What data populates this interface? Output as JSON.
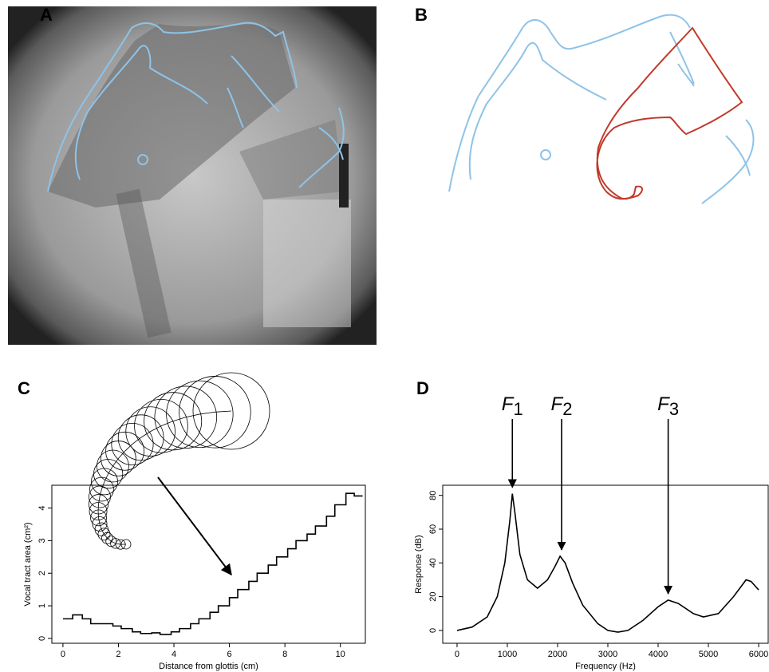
{
  "panel_labels": [
    "A",
    "B",
    "C",
    "D"
  ],
  "chart_data": [
    {
      "type": "step",
      "xlabel": "Distance from glottis (cm)",
      "ylabel": "Vocal tract area (cm²)",
      "x": [
        0,
        0.35,
        0.7,
        1.0,
        1.4,
        1.8,
        2.1,
        2.5,
        2.8,
        3.2,
        3.5,
        3.9,
        4.2,
        4.6,
        4.9,
        5.3,
        5.6,
        6.0,
        6.3,
        6.7,
        7.0,
        7.4,
        7.7,
        8.1,
        8.4,
        8.8,
        9.1,
        9.5,
        9.8,
        10.2,
        10.5,
        10.8
      ],
      "values": [
        0.6,
        0.72,
        0.6,
        0.45,
        0.45,
        0.38,
        0.3,
        0.2,
        0.15,
        0.17,
        0.12,
        0.2,
        0.3,
        0.45,
        0.6,
        0.8,
        1.0,
        1.25,
        1.5,
        1.75,
        2.0,
        2.25,
        2.5,
        2.75,
        3.0,
        3.2,
        3.45,
        3.75,
        4.1,
        4.45,
        4.37,
        4.37
      ],
      "color": "#000000",
      "xlim": [
        -0.4,
        10.9
      ],
      "ylim": [
        -0.15,
        4.7
      ],
      "xticks": [
        0,
        2,
        4,
        6,
        8,
        10
      ],
      "yticks": [
        0,
        1,
        2,
        3,
        4
      ]
    },
    {
      "type": "line",
      "xlabel": "Frequency (Hz)",
      "ylabel": "Response (dB)",
      "x": [
        0,
        300,
        600,
        800,
        950,
        1050,
        1100,
        1150,
        1250,
        1400,
        1600,
        1800,
        1950,
        2050,
        2150,
        2300,
        2500,
        2800,
        3000,
        3200,
        3400,
        3700,
        4000,
        4200,
        4400,
        4700,
        4900,
        5200,
        5500,
        5750,
        5850,
        6000
      ],
      "values": [
        0,
        2,
        8,
        20,
        40,
        65,
        81,
        70,
        45,
        30,
        25,
        30,
        38,
        44,
        40,
        28,
        15,
        4,
        0,
        -1,
        0,
        6,
        14,
        18,
        16,
        10,
        8,
        10,
        20,
        30,
        29,
        24
      ],
      "color": "#000000",
      "xlim": [
        -285,
        6190
      ],
      "ylim": [
        -7.6,
        86
      ],
      "xticks": [
        0,
        1000,
        2000,
        3000,
        4000,
        5000,
        6000
      ],
      "yticks": [
        0,
        20,
        40,
        60,
        80
      ],
      "annotations": [
        {
          "text": "F",
          "sub": "1",
          "x": 1100,
          "y": 81
        },
        {
          "text": "F",
          "sub": "2",
          "x": 2080,
          "y": 44
        },
        {
          "text": "F",
          "sub": "3",
          "x": 4200,
          "y": 18
        }
      ]
    }
  ]
}
